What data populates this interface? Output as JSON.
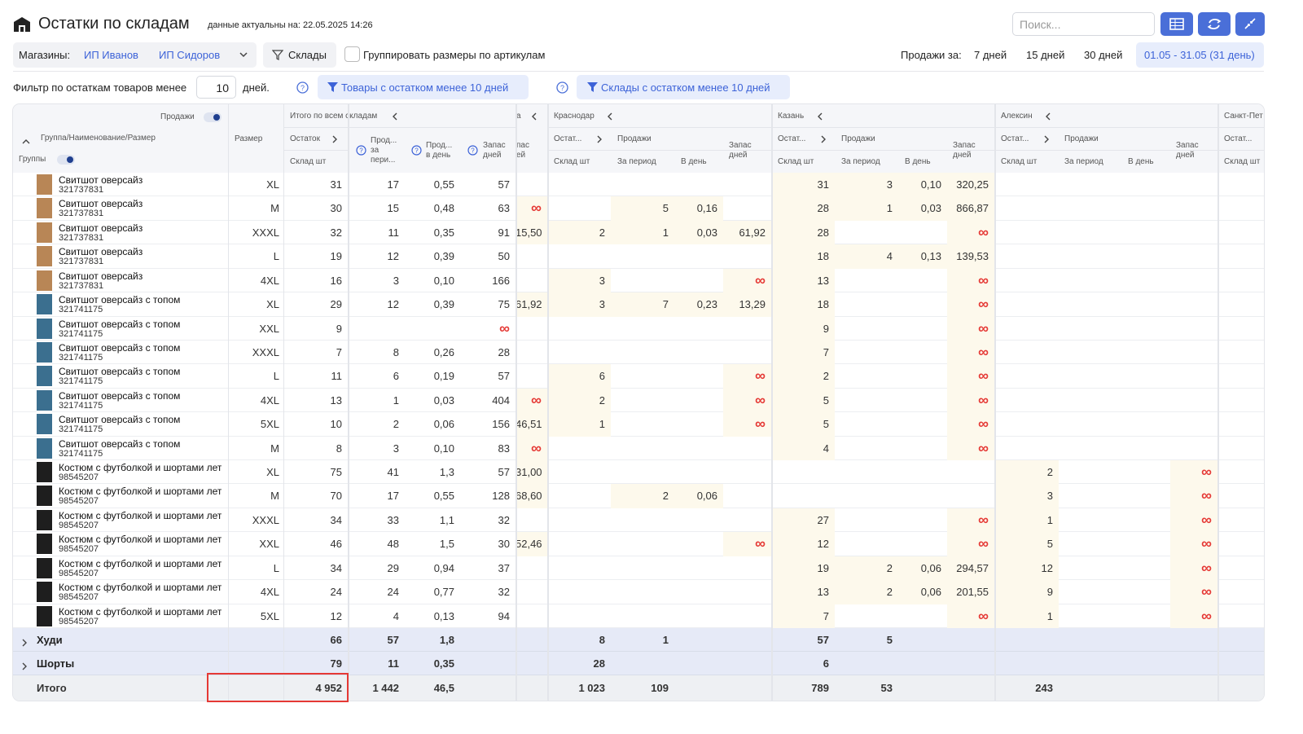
{
  "header": {
    "title": "Остатки по складам",
    "subtitle": "данные актуальны на: 22.05.2025 14:26",
    "search_placeholder": "Поиск..."
  },
  "toolbar": {
    "shops_label": "Магазины:",
    "shops": [
      "ИП Иванов",
      "ИП Сидоров"
    ],
    "warehouses_button": "Склады",
    "group_sizes": "Группировать размеры по артикулам",
    "sales_label": "Продажи за:",
    "periods": [
      "7 дней",
      "15 дней",
      "30 дней",
      "01.05 - 31.05 (31 день)"
    ]
  },
  "filter": {
    "label": "Фильтр по остаткам товаров менее",
    "days_value": "10",
    "days_unit": "дней.",
    "goods_button": "Товары с остатком менее 10 дней",
    "warehouses_button": "Склады с остатком менее 10 дней"
  },
  "table": {
    "header": {
      "sales_toggle": "Продажи",
      "name": "Группа/Наименование/Размер",
      "groups_toggle": "Группы",
      "size": "Размер",
      "total": {
        "name": "Итого по всем складам",
        "stock": "Остаток",
        "stock_sub": "Склад шт",
        "sales_period": "Прод... за пери...",
        "sales_day": "Прод... в день",
        "reserve": "Запас дней"
      },
      "partial": {
        "name": "а",
        "reserve": "пас ей"
      },
      "warehouses": [
        {
          "name": "Краснодар",
          "stock": "Остат...",
          "stock_sub": "Склад шт",
          "sales": "Продажи",
          "period": "За период",
          "per_day": "В день",
          "reserve": "Запас дней"
        },
        {
          "name": "Казань",
          "stock": "Остат...",
          "stock_sub": "Склад шт",
          "sales": "Продажи",
          "period": "За период",
          "per_day": "В день",
          "reserve": "Запас дней"
        },
        {
          "name": "Алексин",
          "stock": "Остат...",
          "stock_sub": "Склад шт",
          "sales": "Продажи",
          "period": "За период",
          "per_day": "В день",
          "reserve": "Запас дней"
        }
      ],
      "last": {
        "name": "Санкт-Пет",
        "stock": "Остат...",
        "stock_sub": "Склад шт"
      }
    },
    "rows": [
      {
        "name": "Свитшот оверсайз",
        "article": "321737831",
        "size": "XL",
        "cells": [
          "31",
          "17",
          "0,55",
          "57",
          null,
          null,
          null,
          null,
          null,
          "31",
          "3",
          "0,10",
          "320,25",
          null,
          null,
          null,
          null,
          null
        ]
      },
      {
        "name": "Свитшот оверсайз",
        "article": "321737831",
        "size": "M",
        "cells": [
          "30",
          "15",
          "0,48",
          "63",
          "∞",
          null,
          "5",
          "0,16",
          null,
          "28",
          "1",
          "0,03",
          "866,87",
          null,
          null,
          null,
          null,
          null
        ]
      },
      {
        "name": "Свитшот оверсайз",
        "article": "321737831",
        "size": "XXXL",
        "cells": [
          "32",
          "11",
          "0,35",
          "91",
          "15,50",
          "2",
          "1",
          "0,03",
          "61,92",
          "28",
          null,
          null,
          "∞",
          null,
          null,
          null,
          null,
          null
        ]
      },
      {
        "name": "Свитшот оверсайз",
        "article": "321737831",
        "size": "L",
        "cells": [
          "19",
          "12",
          "0,39",
          "50",
          null,
          null,
          null,
          null,
          null,
          "18",
          "4",
          "0,13",
          "139,53",
          null,
          null,
          null,
          null,
          null
        ]
      },
      {
        "name": "Свитшот оверсайз",
        "article": "321737831",
        "size": "4XL",
        "cells": [
          "16",
          "3",
          "0,10",
          "166",
          null,
          "3",
          null,
          null,
          "∞",
          "13",
          null,
          null,
          "∞",
          null,
          null,
          null,
          null,
          null
        ]
      },
      {
        "name": "Свитшот оверсайз с топом",
        "article": "321741175",
        "size": "XL",
        "cells": [
          "29",
          "12",
          "0,39",
          "75",
          "61,92",
          "3",
          "7",
          "0,23",
          "13,29",
          "18",
          null,
          null,
          "∞",
          null,
          null,
          null,
          null,
          null
        ]
      },
      {
        "name": "Свитшот оверсайз с топом",
        "article": "321741175",
        "size": "XXL",
        "cells": [
          "9",
          null,
          null,
          "∞",
          null,
          null,
          null,
          null,
          null,
          "9",
          null,
          null,
          "∞",
          null,
          null,
          null,
          null,
          null
        ]
      },
      {
        "name": "Свитшот оверсайз с топом",
        "article": "321741175",
        "size": "XXXL",
        "cells": [
          "7",
          "8",
          "0,26",
          "28",
          null,
          null,
          null,
          null,
          null,
          "7",
          null,
          null,
          "∞",
          null,
          null,
          null,
          null,
          null
        ]
      },
      {
        "name": "Свитшот оверсайз с топом",
        "article": "321741175",
        "size": "L",
        "cells": [
          "11",
          "6",
          "0,19",
          "57",
          null,
          "6",
          null,
          null,
          "∞",
          "2",
          null,
          null,
          "∞",
          null,
          null,
          null,
          null,
          null
        ]
      },
      {
        "name": "Свитшот оверсайз с топом",
        "article": "321741175",
        "size": "4XL",
        "cells": [
          "13",
          "1",
          "0,03",
          "404",
          "∞",
          "2",
          null,
          null,
          "∞",
          "5",
          null,
          null,
          "∞",
          null,
          null,
          null,
          null,
          null
        ]
      },
      {
        "name": "Свитшот оверсайз с топом",
        "article": "321741175",
        "size": "5XL",
        "cells": [
          "10",
          "2",
          "0,06",
          "156",
          "46,51",
          "1",
          null,
          null,
          "∞",
          "5",
          null,
          null,
          "∞",
          null,
          null,
          null,
          null,
          null
        ]
      },
      {
        "name": "Свитшот оверсайз с топом",
        "article": "321741175",
        "size": "M",
        "cells": [
          "8",
          "3",
          "0,10",
          "83",
          "∞",
          null,
          null,
          null,
          null,
          "4",
          null,
          null,
          "∞",
          null,
          null,
          null,
          null,
          null
        ]
      },
      {
        "name": "Костюм с футболкой и шортами лет",
        "article": "98545207",
        "size": "XL",
        "cells": [
          "75",
          "41",
          "1,3",
          "57",
          "31,00",
          null,
          null,
          null,
          null,
          null,
          null,
          null,
          null,
          "2",
          null,
          null,
          "∞",
          null
        ]
      },
      {
        "name": "Костюм с футболкой и шортами лет",
        "article": "98545207",
        "size": "M",
        "cells": [
          "70",
          "17",
          "0,55",
          "128",
          "68,60",
          null,
          "2",
          "0,06",
          null,
          null,
          null,
          null,
          null,
          "3",
          null,
          null,
          "∞",
          null
        ]
      },
      {
        "name": "Костюм с футболкой и шортами лет",
        "article": "98545207",
        "size": "XXXL",
        "cells": [
          "34",
          "33",
          "1,1",
          "32",
          null,
          null,
          null,
          null,
          null,
          "27",
          null,
          null,
          "∞",
          "1",
          null,
          null,
          "∞",
          null
        ]
      },
      {
        "name": "Костюм с футболкой и шортами лет",
        "article": "98545207",
        "size": "XXL",
        "cells": [
          "46",
          "48",
          "1,5",
          "30",
          "52,46",
          null,
          null,
          null,
          "∞",
          "12",
          null,
          null,
          "∞",
          "5",
          null,
          null,
          "∞",
          null
        ]
      },
      {
        "name": "Костюм с футболкой и шортами лет",
        "article": "98545207",
        "size": "L",
        "cells": [
          "34",
          "29",
          "0,94",
          "37",
          null,
          null,
          null,
          null,
          null,
          "19",
          "2",
          "0,06",
          "294,57",
          "12",
          null,
          null,
          "∞",
          null
        ]
      },
      {
        "name": "Костюм с футболкой и шортами лет",
        "article": "98545207",
        "size": "4XL",
        "cells": [
          "24",
          "24",
          "0,77",
          "32",
          null,
          null,
          null,
          null,
          null,
          "13",
          "2",
          "0,06",
          "201,55",
          "9",
          null,
          null,
          "∞",
          null
        ]
      },
      {
        "name": "Костюм с футболкой и шортами лет",
        "article": "98545207",
        "size": "5XL",
        "cells": [
          "12",
          "4",
          "0,13",
          "94",
          null,
          null,
          null,
          null,
          null,
          "7",
          null,
          null,
          "∞",
          "1",
          null,
          null,
          "∞",
          null
        ]
      }
    ],
    "groups": [
      {
        "name": "Худи",
        "cells": [
          "66",
          "57",
          "1,8",
          null,
          null,
          "8",
          "1",
          null,
          null,
          "57",
          "5",
          null,
          null,
          null,
          null,
          null,
          null,
          null
        ]
      },
      {
        "name": "Шорты",
        "cells": [
          "79",
          "11",
          "0,35",
          null,
          null,
          "28",
          null,
          null,
          null,
          "6",
          null,
          null,
          null,
          null,
          null,
          null,
          null,
          null
        ]
      }
    ],
    "total": {
      "name": "Итого",
      "cells": [
        "4 952",
        "1 442",
        "46,5",
        null,
        null,
        "1 023",
        "109",
        null,
        null,
        "789",
        "53",
        null,
        null,
        "243",
        null,
        null,
        null,
        null
      ]
    }
  }
}
